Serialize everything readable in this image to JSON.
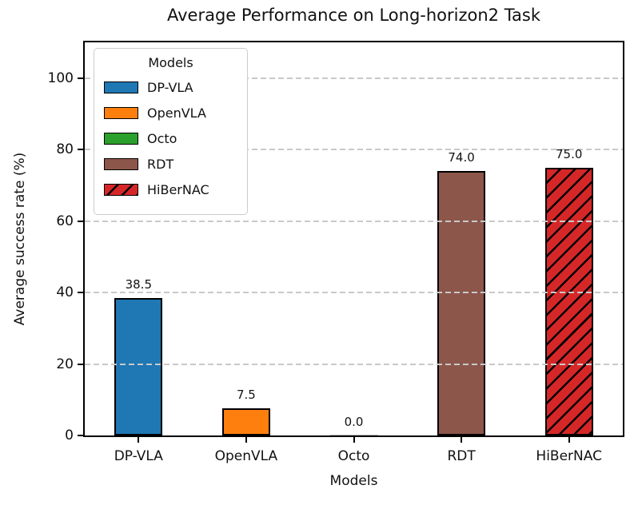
{
  "chart_data": {
    "type": "bar",
    "title": "Average Performance on Long-horizon2 Task",
    "xlabel": "Models",
    "ylabel": "Average success rate (%)",
    "categories": [
      "DP-VLA",
      "OpenVLA",
      "Octo",
      "RDT",
      "HiBerNAC"
    ],
    "values": [
      38.5,
      7.5,
      0.0,
      74.0,
      75.0
    ],
    "value_labels": [
      "38.5",
      "7.5",
      "0.0",
      "74.0",
      "75.0"
    ],
    "bar_colors": [
      "#1f77b4",
      "#ff7f0e",
      "#2ca02c",
      "#8c564b",
      "#d62728"
    ],
    "hatched": [
      false,
      false,
      false,
      false,
      true
    ],
    "hatch_style": "diagonal-forward-slash-black",
    "edge_color": "#000000",
    "zero_bar_line_color": "#b3b3b3",
    "ylim": [
      0,
      110
    ],
    "yticks": [
      0,
      20,
      40,
      60,
      80,
      100
    ],
    "ytick_labels": [
      "0",
      "20",
      "40",
      "60",
      "80",
      "100"
    ],
    "grid": "horizontal-dashed",
    "grid_color": "#c9c9c9",
    "legend": {
      "title": "Models",
      "position": "upper-left",
      "entries": [
        {
          "label": "DP-VLA",
          "color": "#1f77b4",
          "hatched": false
        },
        {
          "label": "OpenVLA",
          "color": "#ff7f0e",
          "hatched": false
        },
        {
          "label": "Octo",
          "color": "#2ca02c",
          "hatched": false
        },
        {
          "label": "RDT",
          "color": "#8c564b",
          "hatched": false
        },
        {
          "label": "HiBerNAC",
          "color": "#d62728",
          "hatched": true
        }
      ]
    }
  }
}
